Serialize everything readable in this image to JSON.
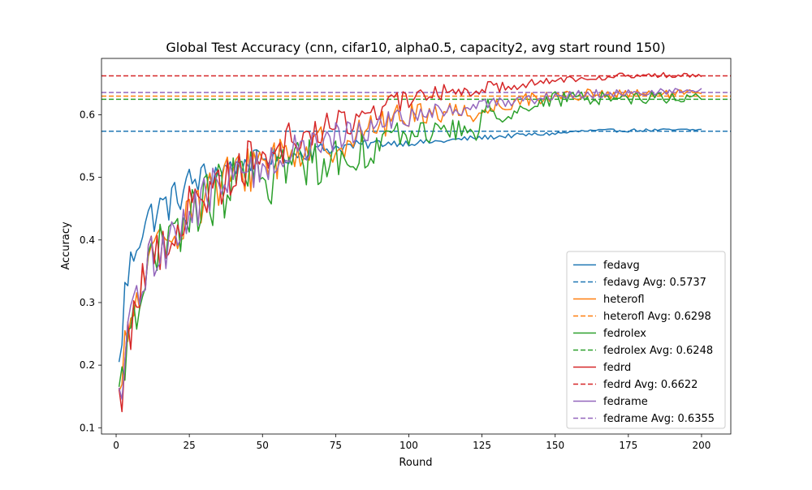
{
  "chart_data": {
    "type": "line",
    "title": "Global Test Accuracy (cnn, cifar10, alpha0.5, capacity2, avg start round 150)",
    "xlabel": "Round",
    "ylabel": "Accuracy",
    "xlim": [
      -5,
      210
    ],
    "ylim": [
      0.09,
      0.69
    ],
    "xticks": [
      0,
      25,
      50,
      75,
      100,
      125,
      150,
      175,
      200
    ],
    "yticks": [
      0.1,
      0.2,
      0.3,
      0.4,
      0.5,
      0.6
    ],
    "grid": false,
    "legend_position": "lower-right",
    "x_start": 1,
    "x_end": 200,
    "series": [
      {
        "name": "fedavg",
        "color": "#1f77b4",
        "avg_label": "fedavg Avg: 0.5737",
        "avg": 0.5737,
        "anchors": [
          [
            1,
            0.19
          ],
          [
            3,
            0.315
          ],
          [
            5,
            0.36
          ],
          [
            7,
            0.4
          ],
          [
            10,
            0.43
          ],
          [
            15,
            0.45
          ],
          [
            20,
            0.465
          ],
          [
            25,
            0.49
          ],
          [
            30,
            0.5
          ],
          [
            40,
            0.52
          ],
          [
            50,
            0.53
          ],
          [
            60,
            0.535
          ],
          [
            70,
            0.545
          ],
          [
            80,
            0.55
          ],
          [
            90,
            0.555
          ],
          [
            100,
            0.555
          ],
          [
            110,
            0.557
          ],
          [
            120,
            0.562
          ],
          [
            130,
            0.565
          ],
          [
            140,
            0.568
          ],
          [
            150,
            0.57
          ],
          [
            160,
            0.574
          ],
          [
            175,
            0.575
          ],
          [
            200,
            0.576
          ]
        ],
        "noise": [
          [
            1,
            0.035
          ],
          [
            25,
            0.03
          ],
          [
            50,
            0.015
          ],
          [
            75,
            0.01
          ],
          [
            100,
            0.005
          ],
          [
            150,
            0.003
          ],
          [
            200,
            0.002
          ]
        ]
      },
      {
        "name": "heterofl",
        "color": "#ff7f0e",
        "avg_label": "heterofl Avg: 0.6298",
        "avg": 0.6298,
        "anchors": [
          [
            1,
            0.13
          ],
          [
            3,
            0.21
          ],
          [
            5,
            0.27
          ],
          [
            8,
            0.32
          ],
          [
            12,
            0.36
          ],
          [
            20,
            0.42
          ],
          [
            25,
            0.46
          ],
          [
            30,
            0.47
          ],
          [
            40,
            0.5
          ],
          [
            50,
            0.53
          ],
          [
            60,
            0.54
          ],
          [
            70,
            0.55
          ],
          [
            80,
            0.56
          ],
          [
            90,
            0.585
          ],
          [
            100,
            0.6
          ],
          [
            110,
            0.605
          ],
          [
            120,
            0.605
          ],
          [
            125,
            0.6
          ],
          [
            130,
            0.615
          ],
          [
            140,
            0.625
          ],
          [
            150,
            0.63
          ],
          [
            160,
            0.632
          ],
          [
            175,
            0.632
          ],
          [
            200,
            0.634
          ]
        ],
        "noise": [
          [
            1,
            0.05
          ],
          [
            25,
            0.045
          ],
          [
            50,
            0.04
          ],
          [
            75,
            0.03
          ],
          [
            100,
            0.02
          ],
          [
            125,
            0.015
          ],
          [
            150,
            0.01
          ],
          [
            200,
            0.006
          ]
        ]
      },
      {
        "name": "fedrolex",
        "color": "#2ca02c",
        "avg_label": "fedrolex Avg: 0.6248",
        "avg": 0.6248,
        "anchors": [
          [
            1,
            0.13
          ],
          [
            3,
            0.21
          ],
          [
            5,
            0.28
          ],
          [
            8,
            0.32
          ],
          [
            12,
            0.36
          ],
          [
            20,
            0.4
          ],
          [
            25,
            0.44
          ],
          [
            30,
            0.46
          ],
          [
            40,
            0.49
          ],
          [
            50,
            0.5
          ],
          [
            60,
            0.52
          ],
          [
            70,
            0.53
          ],
          [
            80,
            0.535
          ],
          [
            90,
            0.555
          ],
          [
            100,
            0.57
          ],
          [
            110,
            0.575
          ],
          [
            120,
            0.575
          ],
          [
            123,
            0.565
          ],
          [
            127,
            0.62
          ],
          [
            130,
            0.6
          ],
          [
            140,
            0.61
          ],
          [
            150,
            0.625
          ],
          [
            160,
            0.627
          ],
          [
            175,
            0.627
          ],
          [
            200,
            0.628
          ]
        ],
        "noise": [
          [
            1,
            0.05
          ],
          [
            25,
            0.05
          ],
          [
            50,
            0.05
          ],
          [
            75,
            0.04
          ],
          [
            100,
            0.02
          ],
          [
            125,
            0.015
          ],
          [
            150,
            0.012
          ],
          [
            200,
            0.008
          ]
        ]
      },
      {
        "name": "fedrd",
        "color": "#d62728",
        "avg_label": "fedrd Avg: 0.6622",
        "avg": 0.6622,
        "anchors": [
          [
            1,
            0.12
          ],
          [
            3,
            0.22
          ],
          [
            5,
            0.27
          ],
          [
            8,
            0.32
          ],
          [
            12,
            0.37
          ],
          [
            20,
            0.42
          ],
          [
            25,
            0.45
          ],
          [
            30,
            0.47
          ],
          [
            40,
            0.51
          ],
          [
            50,
            0.54
          ],
          [
            60,
            0.56
          ],
          [
            70,
            0.575
          ],
          [
            80,
            0.59
          ],
          [
            90,
            0.61
          ],
          [
            100,
            0.625
          ],
          [
            110,
            0.635
          ],
          [
            120,
            0.64
          ],
          [
            130,
            0.645
          ],
          [
            140,
            0.65
          ],
          [
            150,
            0.655
          ],
          [
            160,
            0.66
          ],
          [
            175,
            0.662
          ],
          [
            200,
            0.664
          ]
        ],
        "noise": [
          [
            1,
            0.05
          ],
          [
            25,
            0.045
          ],
          [
            50,
            0.035
          ],
          [
            75,
            0.025
          ],
          [
            100,
            0.015
          ],
          [
            150,
            0.006
          ],
          [
            200,
            0.004
          ]
        ]
      },
      {
        "name": "fedrame",
        "color": "#9467bd",
        "avg_label": "fedrame Avg: 0.6355",
        "avg": 0.6355,
        "anchors": [
          [
            1,
            0.12
          ],
          [
            3,
            0.2
          ],
          [
            5,
            0.27
          ],
          [
            8,
            0.32
          ],
          [
            12,
            0.37
          ],
          [
            20,
            0.41
          ],
          [
            25,
            0.44
          ],
          [
            30,
            0.47
          ],
          [
            40,
            0.5
          ],
          [
            50,
            0.52
          ],
          [
            60,
            0.54
          ],
          [
            70,
            0.555
          ],
          [
            80,
            0.57
          ],
          [
            90,
            0.585
          ],
          [
            100,
            0.595
          ],
          [
            110,
            0.605
          ],
          [
            120,
            0.61
          ],
          [
            130,
            0.62
          ],
          [
            140,
            0.625
          ],
          [
            150,
            0.63
          ],
          [
            160,
            0.633
          ],
          [
            175,
            0.635
          ],
          [
            200,
            0.638
          ]
        ],
        "noise": [
          [
            1,
            0.045
          ],
          [
            25,
            0.04
          ],
          [
            50,
            0.03
          ],
          [
            75,
            0.025
          ],
          [
            100,
            0.015
          ],
          [
            150,
            0.008
          ],
          [
            200,
            0.005
          ]
        ]
      }
    ]
  }
}
